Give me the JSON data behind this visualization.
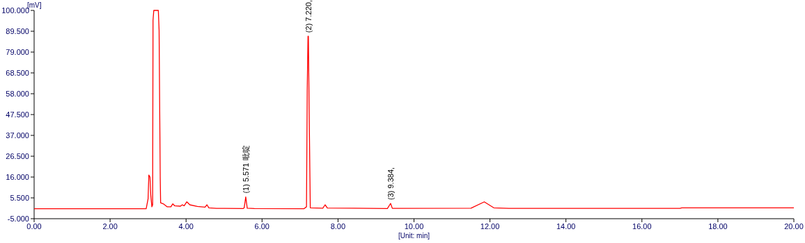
{
  "chart_data": {
    "type": "line",
    "xlabel": "[Unit: min]",
    "ylabel": "[mV]",
    "xlim": [
      0,
      20
    ],
    "ylim": [
      -5,
      100
    ],
    "xticks": [
      {
        "value": 0,
        "label": "0.00"
      },
      {
        "value": 2,
        "label": "2.00"
      },
      {
        "value": 4,
        "label": "4.00"
      },
      {
        "value": 6,
        "label": "6.00"
      },
      {
        "value": 8,
        "label": "8.00"
      },
      {
        "value": 10,
        "label": "10.00"
      },
      {
        "value": 12,
        "label": "12.00"
      },
      {
        "value": 14,
        "label": "14.00"
      },
      {
        "value": 16,
        "label": "16.00"
      },
      {
        "value": 18,
        "label": "18.00"
      },
      {
        "value": 20,
        "label": "20.00"
      }
    ],
    "yticks": [
      {
        "value": -5,
        "label": "-5.000"
      },
      {
        "value": 5.5,
        "label": "5.500"
      },
      {
        "value": 16,
        "label": "16.000"
      },
      {
        "value": 26.5,
        "label": "26.500"
      },
      {
        "value": 37,
        "label": "37.000"
      },
      {
        "value": 47.5,
        "label": "47.500"
      },
      {
        "value": 58,
        "label": "58.000"
      },
      {
        "value": 68.5,
        "label": "68.500"
      },
      {
        "value": 79,
        "label": "79.000"
      },
      {
        "value": 89.5,
        "label": "89.500"
      },
      {
        "value": 100,
        "label": "100.000"
      }
    ],
    "grid": false,
    "marker": "none",
    "line_style": "solid",
    "series": [
      {
        "color": "#ff0000",
        "x": [
          0,
          2.95,
          3.0,
          3.02,
          3.05,
          3.07,
          3.1,
          3.12,
          3.13,
          3.15,
          3.27,
          3.29,
          3.32,
          3.33,
          3.4,
          3.5,
          3.6,
          3.65,
          3.7,
          3.85,
          3.9,
          3.95,
          4.02,
          4.1,
          4.3,
          4.5,
          4.55,
          4.6,
          4.8,
          5.0,
          5.5,
          5.53,
          5.571,
          5.61,
          5.8,
          7.1,
          7.17,
          7.19,
          7.21,
          7.22,
          7.24,
          7.27,
          7.6,
          7.66,
          7.72,
          9.3,
          9.384,
          9.43,
          11.5,
          11.85,
          12.1,
          12.5,
          17,
          17.05,
          20
        ],
        "values": [
          0,
          0,
          5,
          17,
          16,
          7,
          1,
          2,
          95,
          100,
          100,
          90,
          15,
          3,
          2.5,
          1,
          1,
          2.5,
          1.5,
          1.3,
          2,
          1.5,
          3.5,
          2,
          1.2,
          0.8,
          2,
          0.5,
          0.2,
          0.2,
          0.1,
          0.5,
          6,
          0.3,
          0.1,
          0,
          1,
          60,
          87,
          87,
          50,
          0.5,
          0.3,
          2,
          0.4,
          0.1,
          2.7,
          0.2,
          0.3,
          3.5,
          0.5,
          0.2,
          0.2,
          0.5,
          0.5
        ]
      }
    ],
    "annotations": [
      {
        "text": "(1) 5.571 吡啶",
        "x": 5.571,
        "y": 6
      },
      {
        "text": "(2) 7.220,",
        "x": 7.22,
        "y": 87
      },
      {
        "text": "(3) 9.384,",
        "x": 9.384,
        "y": 2.7
      }
    ]
  }
}
